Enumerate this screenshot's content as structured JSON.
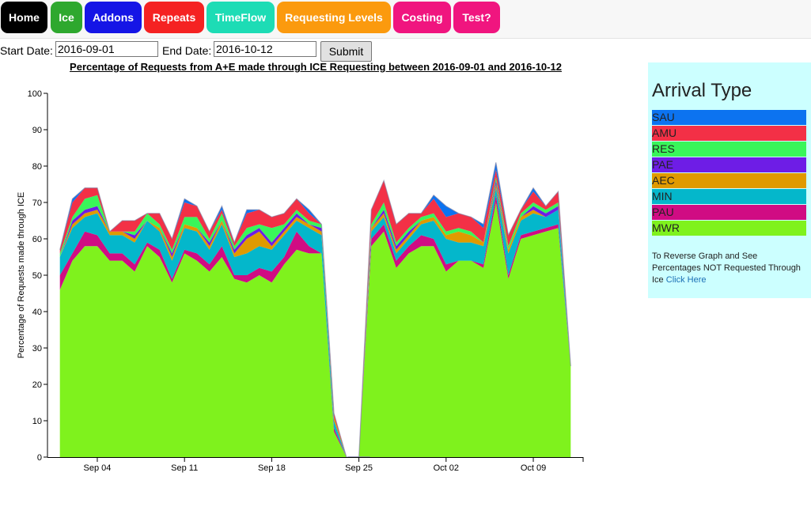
{
  "nav": [
    {
      "label": "Home",
      "color": "#000000"
    },
    {
      "label": "Ice",
      "color": "#2ea82e"
    },
    {
      "label": "Addons",
      "color": "#1515e6"
    },
    {
      "label": "Repeats",
      "color": "#f52222"
    },
    {
      "label": "TimeFlow",
      "color": "#1ddcb5"
    },
    {
      "label": "Requesting Levels",
      "color": "#fb9a0e"
    },
    {
      "label": "Costing",
      "color": "#f0157f"
    },
    {
      "label": "Test?",
      "color": "#f0157f"
    }
  ],
  "filters": {
    "start_label": "Start Date:",
    "start_value": "2016-09-01",
    "end_label": "End Date:",
    "end_value": "2016-10-12",
    "submit_label": "Submit"
  },
  "legend": {
    "title": "Arrival Type",
    "note": "To Reverse Graph and See Percentages NOT Requested Through Ice",
    "link_label": "Click Here"
  },
  "chart_data": {
    "type": "area",
    "stacked": true,
    "title": "Percentage of Requests from A+E made through ICE Requesting between 2016-09-01 and 2016-10-12",
    "xlabel": "",
    "ylabel": "Percentage of Requests made through ICE",
    "ylim": [
      0,
      100
    ],
    "yticks": [
      0,
      10,
      20,
      30,
      40,
      50,
      60,
      70,
      80,
      90,
      100
    ],
    "xlim": [
      "2016-08-31",
      "2016-10-13"
    ],
    "xtick_labels": [
      {
        "date": "2016-09-04",
        "label": "Sep 04"
      },
      {
        "date": "2016-09-11",
        "label": "Sep 11"
      },
      {
        "date": "2016-09-18",
        "label": "Sep 18"
      },
      {
        "date": "2016-09-25",
        "label": "Sep 25"
      },
      {
        "date": "2016-10-02",
        "label": "Oct 02"
      },
      {
        "date": "2016-10-09",
        "label": "Oct 09"
      }
    ],
    "x": [
      "2016-09-01",
      "2016-09-02",
      "2016-09-03",
      "2016-09-04",
      "2016-09-05",
      "2016-09-06",
      "2016-09-07",
      "2016-09-08",
      "2016-09-09",
      "2016-09-10",
      "2016-09-11",
      "2016-09-12",
      "2016-09-13",
      "2016-09-14",
      "2016-09-15",
      "2016-09-16",
      "2016-09-17",
      "2016-09-18",
      "2016-09-19",
      "2016-09-20",
      "2016-09-21",
      "2016-09-22",
      "2016-09-23",
      "2016-09-24",
      "2016-09-25",
      "2016-09-26",
      "2016-09-27",
      "2016-09-28",
      "2016-09-29",
      "2016-09-30",
      "2016-10-01",
      "2016-10-02",
      "2016-10-03",
      "2016-10-04",
      "2016-10-05",
      "2016-10-06",
      "2016-10-07",
      "2016-10-08",
      "2016-10-09",
      "2016-10-10",
      "2016-10-11",
      "2016-10-12"
    ],
    "gap_dates": [
      "2016-09-25"
    ],
    "series": [
      {
        "name": "MWR",
        "color": "#7ff21d",
        "values": [
          46,
          54,
          58,
          58,
          54,
          54,
          51,
          58,
          55,
          48,
          56,
          54,
          51,
          55,
          49,
          48,
          50,
          48,
          53,
          57,
          56,
          56,
          7,
          0,
          0,
          58,
          62,
          52,
          56,
          58,
          58,
          51,
          54,
          54,
          52,
          70,
          49,
          60,
          61,
          62,
          63,
          25
        ]
      },
      {
        "name": "PAU",
        "color": "#d00c83",
        "values": [
          4,
          2,
          4,
          3,
          2,
          2,
          2,
          1,
          2,
          1,
          1,
          2,
          2,
          3,
          1,
          2,
          2,
          3,
          2,
          5,
          2,
          0,
          1,
          0,
          0,
          2,
          2,
          2,
          2,
          3,
          2,
          2,
          0,
          0,
          1,
          2,
          1,
          1,
          1,
          1,
          1,
          0
        ]
      },
      {
        "name": "MIN",
        "color": "#04b7cb",
        "values": [
          5,
          7,
          4,
          6,
          5,
          5,
          6,
          6,
          5,
          5,
          6,
          6,
          4,
          6,
          5,
          6,
          6,
          6,
          6,
          3,
          5,
          5,
          2,
          0,
          0,
          2,
          2,
          2,
          2,
          3,
          5,
          7,
          5,
          5,
          5,
          2,
          6,
          4,
          5,
          3,
          4,
          0
        ]
      },
      {
        "name": "AEC",
        "color": "#e09a00",
        "values": [
          0,
          1,
          1,
          1,
          1,
          1,
          1,
          0,
          1,
          1,
          1,
          1,
          1,
          1,
          1,
          4,
          4,
          1,
          1,
          1,
          1,
          1,
          1,
          0,
          0,
          1,
          1,
          1,
          1,
          1,
          1,
          1,
          3,
          2,
          1,
          1,
          1,
          1,
          1,
          0,
          0,
          0
        ]
      },
      {
        "name": "PAE",
        "color": "#6e1de6",
        "values": [
          0,
          1,
          1,
          1,
          0,
          0,
          1,
          0,
          0,
          1,
          0,
          0,
          1,
          0,
          1,
          1,
          1,
          1,
          1,
          1,
          0,
          1,
          0,
          0,
          0,
          0,
          1,
          1,
          1,
          0,
          0,
          0,
          0,
          0,
          0,
          1,
          0,
          0,
          1,
          1,
          1,
          0
        ]
      },
      {
        "name": "RES",
        "color": "#39f65a",
        "values": [
          1,
          1,
          3,
          3,
          0,
          0,
          1,
          2,
          1,
          1,
          2,
          3,
          1,
          2,
          1,
          2,
          1,
          4,
          1,
          1,
          1,
          1,
          0,
          0,
          0,
          1,
          2,
          1,
          1,
          1,
          1,
          1,
          1,
          1,
          0,
          1,
          1,
          1,
          1,
          1,
          1,
          0
        ]
      },
      {
        "name": "AMU",
        "color": "#f33046",
        "values": [
          1,
          4,
          3,
          2,
          0,
          3,
          3,
          0,
          3,
          3,
          4,
          3,
          2,
          1,
          1,
          4,
          4,
          3,
          3,
          3,
          2,
          0,
          1,
          0,
          0,
          4,
          6,
          5,
          4,
          1,
          4,
          4,
          4,
          4,
          4,
          2,
          3,
          1,
          3,
          1,
          3,
          0
        ]
      },
      {
        "name": "SAU",
        "color": "#0c73f0",
        "values": [
          0,
          1,
          0,
          0,
          0,
          0,
          0,
          0,
          0,
          0,
          1,
          0,
          0,
          1,
          0,
          1,
          0,
          0,
          0,
          0,
          1,
          0,
          0,
          0,
          0,
          0,
          0,
          0,
          0,
          0,
          1,
          3,
          0,
          0,
          1,
          2,
          0,
          0,
          1,
          0,
          0,
          0
        ]
      }
    ]
  }
}
